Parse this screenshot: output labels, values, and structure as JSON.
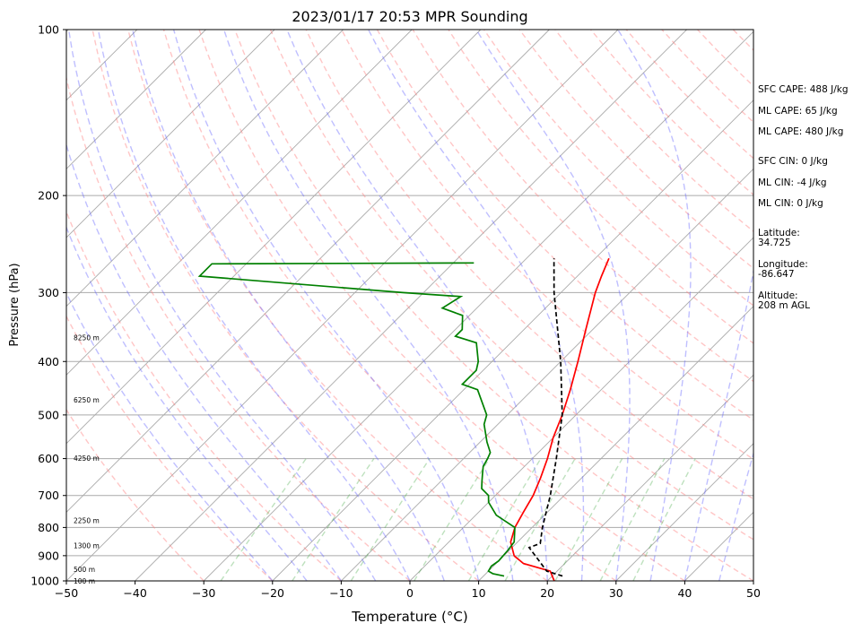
{
  "chart_data": {
    "type": "line",
    "title": "2023/01/17 20:53 MPR Sounding",
    "xlabel": "Temperature (°C)",
    "ylabel": "Pressure (hPa)",
    "xlim": [
      -50,
      50
    ],
    "ylim": [
      1000,
      100
    ],
    "yscale": "log",
    "skew": "skew-T",
    "grid": true,
    "x_ticks": [
      -50,
      -40,
      -30,
      -20,
      -10,
      0,
      10,
      20,
      30,
      40,
      50
    ],
    "y_ticks": [
      1000,
      900,
      800,
      700,
      600,
      500,
      400,
      300,
      200,
      100
    ],
    "series": [
      {
        "color": "#ff0000",
        "points": [
          [
            1000,
            21
          ],
          [
            960,
            19
          ],
          [
            930,
            14
          ],
          [
            900,
            11.5
          ],
          [
            850,
            9
          ],
          [
            800,
            7.5
          ],
          [
            750,
            6.5
          ],
          [
            700,
            5.5
          ],
          [
            650,
            4
          ],
          [
            600,
            2.2
          ],
          [
            550,
            0
          ],
          [
            500,
            -2
          ],
          [
            450,
            -4.5
          ],
          [
            400,
            -7.5
          ],
          [
            350,
            -11
          ],
          [
            300,
            -15
          ],
          [
            280,
            -16.5
          ],
          [
            260,
            -18
          ]
        ]
      },
      {
        "color": "#008000",
        "points": [
          [
            980,
            13
          ],
          [
            970,
            11
          ],
          [
            960,
            10
          ],
          [
            940,
            9.7
          ],
          [
            920,
            10
          ],
          [
            880,
            9.8
          ],
          [
            850,
            9.5
          ],
          [
            800,
            7.5
          ],
          [
            760,
            3
          ],
          [
            720,
            0
          ],
          [
            700,
            -1
          ],
          [
            680,
            -3
          ],
          [
            660,
            -4
          ],
          [
            640,
            -5
          ],
          [
            620,
            -6
          ],
          [
            600,
            -6.5
          ],
          [
            585,
            -7
          ],
          [
            560,
            -9
          ],
          [
            520,
            -12
          ],
          [
            500,
            -13
          ],
          [
            450,
            -18
          ],
          [
            440,
            -21
          ],
          [
            415,
            -21
          ],
          [
            400,
            -22
          ],
          [
            370,
            -25
          ],
          [
            360,
            -29
          ],
          [
            350,
            -29
          ],
          [
            330,
            -31
          ],
          [
            320,
            -35
          ],
          [
            305,
            -34
          ],
          [
            300,
            -43
          ],
          [
            280,
            -75
          ],
          [
            266,
            -75
          ],
          [
            265,
            -37
          ]
        ]
      },
      {
        "color": "#000000",
        "dashed": true,
        "points": [
          [
            980,
            21.5
          ],
          [
            960,
            18.5
          ],
          [
            870,
            12.5
          ],
          [
            855,
            13.5
          ],
          [
            800,
            11.5
          ],
          [
            700,
            8
          ],
          [
            600,
            3.5
          ],
          [
            500,
            -2
          ],
          [
            400,
            -10
          ],
          [
            300,
            -21
          ],
          [
            260,
            -26
          ]
        ]
      }
    ],
    "height_labels": [
      {
        "label": "100 m",
        "p": 1000
      },
      {
        "label": "500 m",
        "p": 952
      },
      {
        "label": "1300 m",
        "p": 863
      },
      {
        "label": "2250 m",
        "p": 777
      },
      {
        "label": "4250 m",
        "p": 599
      },
      {
        "label": "6250 m",
        "p": 469
      },
      {
        "label": "8250 m",
        "p": 362
      }
    ],
    "side_panel": [
      "SFC CAPE: 488 J/kg",
      "ML CAPE: 65 J/kg",
      "ML CAPE: 480 J/kg",
      "SFC CIN: 0 J/kg",
      "ML CIN: -4 J/kg",
      "ML CIN: 0 J/kg",
      "Latitude:",
      "34.725",
      "Longitude:",
      "-86.647",
      "Altitude:",
      "208 m AGL"
    ]
  }
}
